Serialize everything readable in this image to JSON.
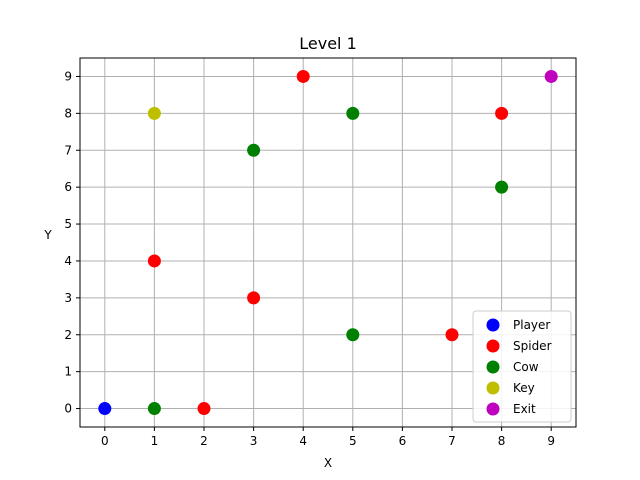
{
  "chart_data": {
    "type": "scatter",
    "title": "Level 1",
    "xlabel": "X",
    "ylabel": "Y",
    "xlim": [
      -0.5,
      9.5
    ],
    "ylim": [
      -0.5,
      9.5
    ],
    "xticks": [
      "0",
      "1",
      "2",
      "3",
      "4",
      "5",
      "6",
      "7",
      "8",
      "9"
    ],
    "yticks": [
      "0",
      "1",
      "2",
      "3",
      "4",
      "5",
      "6",
      "7",
      "8",
      "9"
    ],
    "grid": true,
    "legend_position": "bottom-right",
    "series": [
      {
        "name": "Player",
        "color": "#0000ff",
        "points": [
          [
            0,
            0
          ]
        ]
      },
      {
        "name": "Spider",
        "color": "#ff0000",
        "points": [
          [
            4,
            9
          ],
          [
            8,
            8
          ],
          [
            1,
            4
          ],
          [
            3,
            3
          ],
          [
            7,
            2
          ],
          [
            2,
            0
          ]
        ]
      },
      {
        "name": "Cow",
        "color": "#008000",
        "points": [
          [
            5,
            8
          ],
          [
            3,
            7
          ],
          [
            8,
            6
          ],
          [
            5,
            2
          ],
          [
            1,
            0
          ]
        ]
      },
      {
        "name": "Key",
        "color": "#bfbf00",
        "points": [
          [
            1,
            8
          ]
        ]
      },
      {
        "name": "Exit",
        "color": "#bf00bf",
        "points": [
          [
            9,
            9
          ]
        ]
      }
    ]
  }
}
